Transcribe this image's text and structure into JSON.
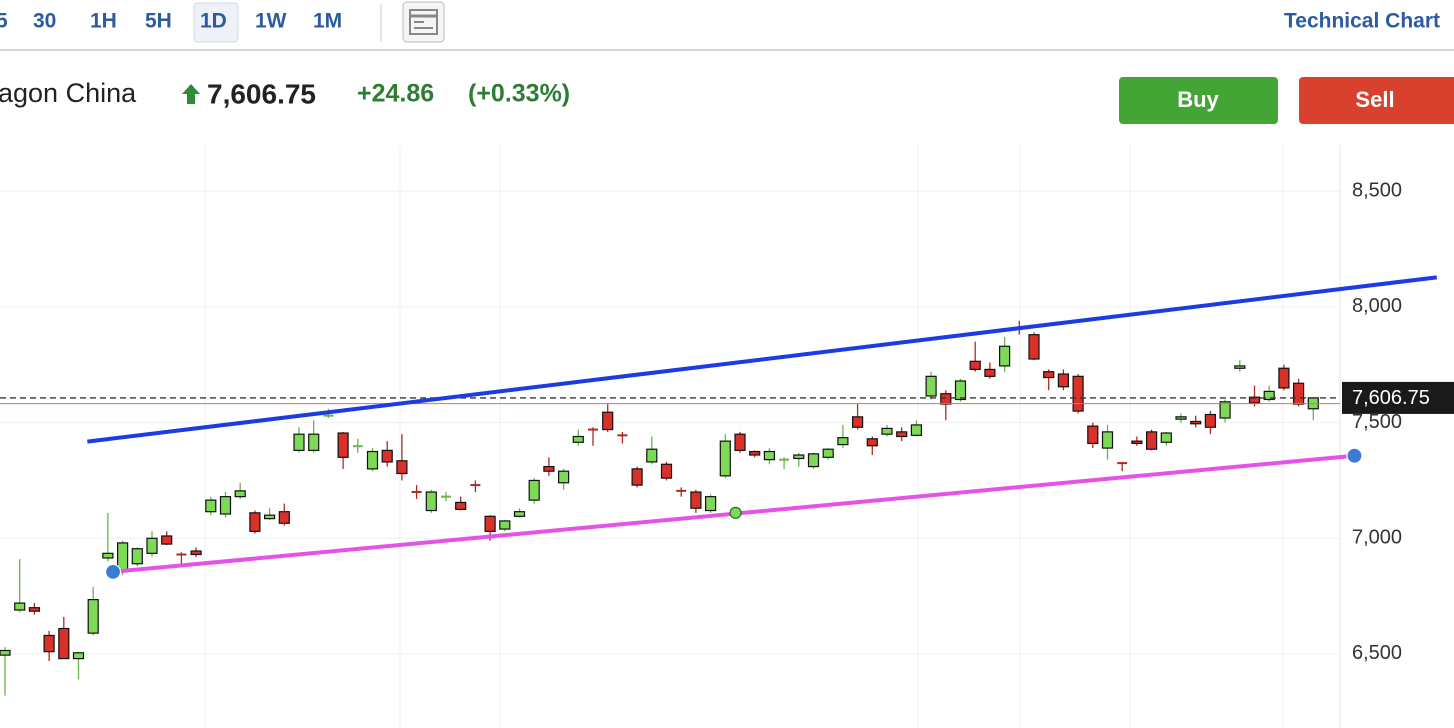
{
  "toolbar": {
    "intervals": [
      "5",
      "30",
      "1H",
      "5H",
      "1D",
      "1W",
      "1M"
    ],
    "selected": 4,
    "title": "Technical Chart"
  },
  "quote": {
    "name": "agon China",
    "price": "7,606.75",
    "change": "+24.86",
    "change_pct": "(+0.33%)"
  },
  "actions": {
    "buy": "Buy",
    "sell": "Sell"
  },
  "chart_data": {
    "type": "candlestick",
    "open": [
      6495,
      6690,
      6700,
      6580,
      6610,
      6480,
      6590,
      6915,
      6860,
      6890,
      6935,
      7010,
      6930,
      6945,
      7115,
      7105,
      7180,
      7110,
      7085,
      7115,
      7380,
      7380,
      7530,
      7455,
      7398,
      7300,
      7380,
      7335,
      7200,
      7120,
      7180,
      7155,
      7230,
      7095,
      7040,
      7095,
      7165,
      7310,
      7240,
      7415,
      7470,
      7545,
      7445,
      7300,
      7330,
      7320,
      7205,
      7200,
      7120,
      7270,
      7450,
      7375,
      7340,
      7340,
      7345,
      7310,
      7350,
      7405,
      7525,
      7430,
      7450,
      7460,
      7445,
      7615,
      7625,
      7600,
      7765,
      7730,
      7745,
      7910,
      7880,
      7720,
      7710,
      7700,
      7485,
      7390,
      7325,
      7420,
      7460,
      7415,
      7515,
      7505,
      7535,
      7520,
      7735,
      7610,
      7600,
      7735,
      7670,
      7560
    ],
    "high": [
      6530,
      6910,
      6720,
      6600,
      6660,
      6510,
      6790,
      7110,
      6990,
      6960,
      7030,
      7030,
      6940,
      6960,
      7180,
      7200,
      7240,
      7120,
      7130,
      7150,
      7480,
      7510,
      7560,
      7460,
      7430,
      7390,
      7420,
      7450,
      7230,
      7210,
      7200,
      7180,
      7250,
      7100,
      7080,
      7130,
      7260,
      7350,
      7300,
      7470,
      7480,
      7580,
      7460,
      7310,
      7440,
      7330,
      7220,
      7210,
      7190,
      7450,
      7460,
      7380,
      7390,
      7350,
      7370,
      7370,
      7390,
      7490,
      7580,
      7440,
      7490,
      7480,
      7510,
      7720,
      7640,
      7690,
      7850,
      7760,
      7870,
      7940,
      7890,
      7730,
      7730,
      7710,
      7500,
      7490,
      7330,
      7440,
      7470,
      7460,
      7540,
      7530,
      7550,
      7600,
      7770,
      7660,
      7660,
      7750,
      7690,
      7610
    ],
    "low": [
      6320,
      6680,
      6670,
      6470,
      6480,
      6390,
      6580,
      6900,
      6840,
      6880,
      6920,
      6970,
      6890,
      6920,
      7100,
      7090,
      7170,
      7020,
      7080,
      7055,
      7370,
      7370,
      7520,
      7300,
      7370,
      7290,
      7310,
      7250,
      7170,
      7110,
      7160,
      7120,
      7200,
      6990,
      7030,
      7090,
      7150,
      7270,
      7210,
      7400,
      7400,
      7460,
      7410,
      7220,
      7320,
      7250,
      7180,
      7110,
      7110,
      7260,
      7370,
      7350,
      7320,
      7300,
      7310,
      7300,
      7340,
      7390,
      7470,
      7360,
      7440,
      7420,
      7440,
      7600,
      7510,
      7590,
      7720,
      7690,
      7720,
      7880,
      7770,
      7640,
      7640,
      7540,
      7390,
      7340,
      7290,
      7400,
      7380,
      7400,
      7500,
      7480,
      7450,
      7500,
      7720,
      7570,
      7590,
      7640,
      7570,
      7510
    ],
    "close": [
      6515,
      6720,
      6685,
      6510,
      6480,
      6505,
      6735,
      6935,
      6980,
      6955,
      7000,
      6975,
      6925,
      6930,
      7165,
      7180,
      7205,
      7030,
      7100,
      7065,
      7450,
      7450,
      7535,
      7350,
      7402,
      7375,
      7330,
      7280,
      7195,
      7200,
      7185,
      7125,
      7225,
      7030,
      7075,
      7115,
      7250,
      7290,
      7290,
      7440,
      7465,
      7470,
      7440,
      7230,
      7385,
      7260,
      7200,
      7130,
      7180,
      7420,
      7380,
      7360,
      7375,
      7345,
      7360,
      7365,
      7385,
      7435,
      7480,
      7400,
      7475,
      7440,
      7490,
      7700,
      7580,
      7680,
      7730,
      7700,
      7830,
      7905,
      7775,
      7695,
      7655,
      7550,
      7410,
      7460,
      7320,
      7410,
      7385,
      7455,
      7525,
      7495,
      7480,
      7590,
      7745,
      7585,
      7635,
      7650,
      7580,
      7607
    ],
    "up_color": "#7ed957",
    "down_color": "#d9302a",
    "ylim": [
      6180,
      8700
    ],
    "yticks": [
      {
        "value": 6500,
        "label": "6,500"
      },
      {
        "value": 7000,
        "label": "7,000"
      },
      {
        "value": 7500,
        "label": "7,500"
      },
      {
        "value": 8000,
        "label": "8,000"
      },
      {
        "value": 8500,
        "label": "8,500"
      }
    ],
    "grid": true,
    "last_price": {
      "value": 7606.75,
      "label": "7,606.75"
    },
    "previous_close": 7581.89,
    "trendlines": [
      {
        "color": "#1c3be0",
        "x": [
          5.6,
          97.4
        ],
        "y": [
          7418,
          8128
        ]
      },
      {
        "color": "#e552e8",
        "x": [
          7.35,
          91.8
        ],
        "y": [
          6855,
          7357
        ]
      }
    ],
    "anchors": [
      {
        "color": "#3a7bd5",
        "x": 7.35,
        "y": 6855
      },
      {
        "color": "#3a7bd5",
        "x": 91.8,
        "y": 7357
      },
      {
        "color": "#7ed957",
        "x": 49.7,
        "y": 7110
      }
    ]
  }
}
